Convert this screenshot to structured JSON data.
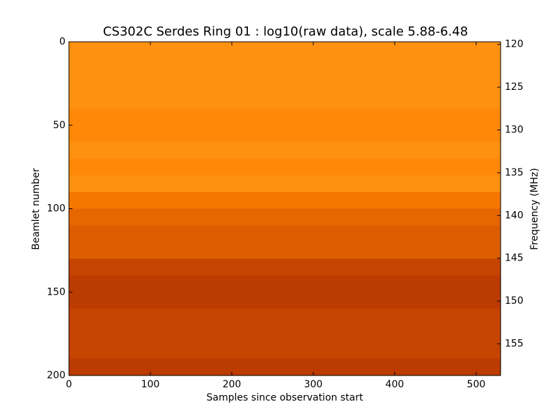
{
  "chart_data": {
    "type": "heatmap",
    "title": "CS302C Serdes Ring 01 : log10(raw data), scale 5.88-6.48",
    "xlabel": "Samples since observation start",
    "ylabel": "Beamlet number",
    "y2label": "Frequency (MHz)",
    "xlim": [
      0,
      530
    ],
    "xticks": [
      0,
      100,
      200,
      300,
      400,
      500
    ],
    "ylim": [
      200,
      0
    ],
    "yticks": [
      0,
      50,
      100,
      150,
      200
    ],
    "y2lim": [
      158.7,
      119.7
    ],
    "y2ticks": [
      120,
      125,
      130,
      135,
      140,
      145,
      150,
      155
    ],
    "zlim": [
      5.88,
      6.48
    ],
    "colormap": "afmhot",
    "ybins": [
      0,
      10,
      20,
      30,
      40,
      50,
      60,
      70,
      80,
      90,
      100,
      110,
      120,
      130,
      140,
      150,
      160,
      170,
      180,
      190,
      200
    ],
    "values": [
      6.2,
      6.2,
      6.2,
      6.2,
      6.19,
      6.19,
      6.2,
      6.19,
      6.2,
      6.17,
      6.15,
      6.14,
      6.14,
      6.11,
      6.1,
      6.1,
      6.11,
      6.11,
      6.11,
      6.1
    ]
  }
}
